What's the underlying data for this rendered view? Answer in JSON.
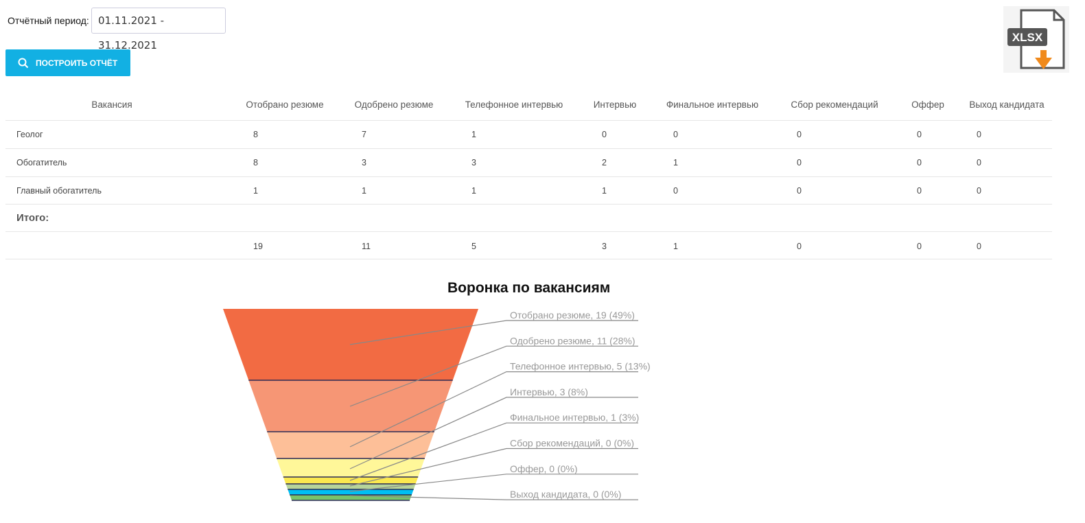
{
  "filters": {
    "period_label": "Отчётный период:",
    "period_value": "01.11.2021 - 31.12.2021"
  },
  "toolbar": {
    "build_label": "ПОСТРОИТЬ ОТЧЁТ",
    "export_label": "XLSX"
  },
  "table": {
    "headers": [
      "Вакансия",
      "Отобрано резюме",
      "Одобрено резюме",
      "Телефонное интервью",
      "Интервью",
      "Финальное интервью",
      "Сбор рекомендаций",
      "Оффер",
      "Выход кандидата"
    ],
    "rows": [
      {
        "name": "Геолог",
        "values": [
          "8",
          "7",
          "1",
          "0",
          "0",
          "0",
          "0",
          "0"
        ]
      },
      {
        "name": "Обогатитель",
        "values": [
          "8",
          "3",
          "3",
          "2",
          "1",
          "0",
          "0",
          "0"
        ]
      },
      {
        "name": "Главный обогатитель",
        "values": [
          "1",
          "1",
          "1",
          "1",
          "0",
          "0",
          "0",
          "0"
        ]
      }
    ],
    "total_label": "Итого:",
    "totals": [
      "19",
      "11",
      "5",
      "3",
      "1",
      "0",
      "0",
      "0"
    ]
  },
  "chart_data": {
    "type": "funnel",
    "title": "Воронка по вакансиям",
    "categories": [
      "Отобрано резюме",
      "Одобрено резюме",
      "Телефонное интервью",
      "Интервью",
      "Финальное интервью",
      "Сбор рекомендаций",
      "Оффер",
      "Выход кандидата"
    ],
    "values": [
      19,
      11,
      5,
      3,
      1,
      0,
      0,
      0
    ],
    "percents": [
      49,
      28,
      13,
      8,
      3,
      0,
      0,
      0
    ],
    "labels": [
      "Отобрано резюме, 19 (49%)",
      "Одобрено резюме, 11 (28%)",
      "Телефонное интервью, 5 (13%)",
      "Интервью, 3 (8%)",
      "Финальное интервью, 1 (3%)",
      "Сбор рекомендаций, 0 (0%)",
      "Оффер, 0 (0%)",
      "Выход кандидата, 0 (0%)"
    ],
    "colors": [
      "#f26b43",
      "#f69675",
      "#fdbf98",
      "#fff799",
      "#fbe84f",
      "#b6d49a",
      "#00bff3",
      "#79c36a"
    ]
  }
}
